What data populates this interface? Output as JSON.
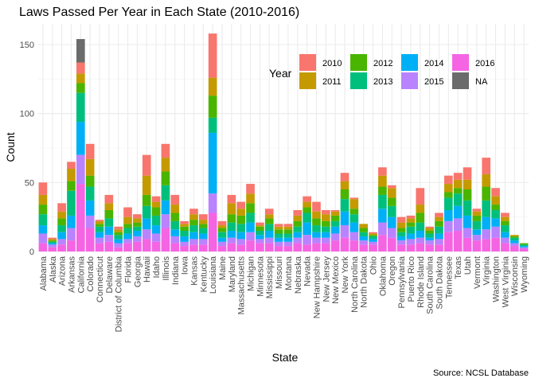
{
  "chart_data": {
    "type": "bar",
    "stacked": true,
    "title": "Laws Passed Per Year in Each State (2010-2016)",
    "xlabel": "State",
    "ylabel": "Count",
    "caption": "Source: NCSL Database",
    "ylim": [
      0,
      165
    ],
    "yticks": [
      0,
      50,
      100,
      150
    ],
    "grid": true,
    "legend": {
      "title": "Year",
      "position": "top-right"
    },
    "categories": [
      "Alabama",
      "Alaska",
      "Arizona",
      "Arkansas",
      "California",
      "Colorado",
      "Connecticut",
      "Delaware",
      "District of Columbia",
      "Florida",
      "Georgia",
      "Hawaii",
      "Idaho",
      "Illinois",
      "Indiana",
      "Iowa",
      "Kansas",
      "Kentucky",
      "Louisiana",
      "Maine",
      "Maryland",
      "Massachusetts",
      "Michigan",
      "Minnesota",
      "Mississippi",
      "Missouri",
      "Montana",
      "Nebraska",
      "Nevada",
      "New Hampshire",
      "New Jersey",
      "New Mexico",
      "New York",
      "North Carolina",
      "North Dakota",
      "Ohio",
      "Oklahoma",
      "Oregon",
      "Pennsylvania",
      "Puerto Rico",
      "Rhode Island",
      "South Carolina",
      "South Dakota",
      "Tennessee",
      "Texas",
      "Utah",
      "Vermont",
      "Virginia",
      "Washington",
      "West Virginia",
      "Wisconsin",
      "Wyoming"
    ],
    "series": [
      {
        "name": "2016",
        "color": "#F564E3",
        "values": [
          6,
          3,
          5,
          8,
          49,
          17,
          6,
          7,
          3,
          6,
          7,
          9,
          7,
          17,
          6,
          4,
          5,
          5,
          28,
          4,
          6,
          5,
          8,
          6,
          6,
          4,
          4,
          6,
          5,
          6,
          6,
          8,
          10,
          8,
          5,
          5,
          12,
          10,
          5,
          5,
          6,
          5,
          5,
          14,
          15,
          10,
          8,
          9,
          10,
          6,
          4,
          2
        ]
      },
      {
        "name": "2015",
        "color": "#B983FF",
        "values": [
          7,
          2,
          4,
          9,
          21,
          9,
          4,
          5,
          3,
          3,
          4,
          7,
          6,
          10,
          5,
          3,
          4,
          4,
          14,
          3,
          4,
          4,
          6,
          3,
          4,
          3,
          3,
          4,
          7,
          4,
          4,
          5,
          9,
          6,
          3,
          2,
          9,
          7,
          3,
          4,
          4,
          3,
          4,
          8,
          9,
          7,
          4,
          7,
          8,
          4,
          2,
          1
        ]
      },
      {
        "name": "2014",
        "color": "#00B0F6",
        "values": [
          6,
          1,
          5,
          9,
          24,
          11,
          4,
          6,
          3,
          4,
          4,
          8,
          6,
          10,
          5,
          4,
          5,
          4,
          44,
          3,
          5,
          5,
          7,
          3,
          5,
          3,
          3,
          4,
          9,
          4,
          4,
          5,
          10,
          7,
          3,
          2,
          10,
          8,
          3,
          4,
          5,
          2,
          4,
          8,
          9,
          9,
          4,
          9,
          6,
          4,
          2,
          1
        ]
      },
      {
        "name": "2013",
        "color": "#00BF7D",
        "values": [
          8,
          1,
          5,
          18,
          21,
          10,
          4,
          6,
          3,
          4,
          3,
          9,
          7,
          11,
          6,
          4,
          5,
          4,
          11,
          4,
          6,
          6,
          7,
          3,
          5,
          3,
          3,
          4,
          7,
          5,
          4,
          4,
          9,
          6,
          3,
          2,
          10,
          8,
          3,
          5,
          6,
          3,
          5,
          9,
          9,
          11,
          6,
          12,
          6,
          5,
          2,
          1
        ]
      },
      {
        "name": "2012",
        "color": "#49B500",
        "values": [
          7,
          1,
          5,
          7,
          7,
          8,
          2,
          6,
          2,
          3,
          3,
          8,
          6,
          10,
          6,
          3,
          4,
          3,
          16,
          3,
          6,
          6,
          7,
          3,
          4,
          3,
          3,
          4,
          4,
          5,
          4,
          4,
          7,
          4,
          3,
          1,
          6,
          6,
          3,
          3,
          7,
          2,
          4,
          4,
          4,
          8,
          4,
          10,
          4,
          3,
          1,
          1
        ]
      },
      {
        "name": "2011",
        "color": "#C49A00",
        "values": [
          7,
          1,
          5,
          9,
          7,
          12,
          2,
          5,
          2,
          5,
          3,
          14,
          4,
          10,
          6,
          2,
          4,
          3,
          13,
          2,
          8,
          5,
          7,
          1,
          3,
          2,
          2,
          4,
          4,
          5,
          5,
          3,
          6,
          7,
          3,
          1,
          8,
          7,
          4,
          3,
          6,
          2,
          3,
          6,
          6,
          7,
          3,
          9,
          6,
          3,
          1,
          0
        ]
      },
      {
        "name": "2010",
        "color": "#F8766D",
        "values": [
          9,
          1,
          6,
          5,
          8,
          11,
          1,
          6,
          2,
          7,
          3,
          15,
          4,
          10,
          7,
          2,
          4,
          4,
          32,
          3,
          6,
          5,
          7,
          2,
          4,
          2,
          2,
          4,
          4,
          7,
          3,
          1,
          6,
          1,
          0,
          1,
          6,
          2,
          4,
          2,
          12,
          1,
          3,
          6,
          5,
          9,
          2,
          12,
          6,
          3,
          0,
          0
        ]
      },
      {
        "name": "NA",
        "color": "#6B6B6B",
        "values": [
          0,
          0,
          0,
          0,
          17,
          0,
          0,
          0,
          0,
          0,
          0,
          0,
          0,
          0,
          0,
          0,
          0,
          0,
          0,
          0,
          0,
          0,
          0,
          0,
          0,
          0,
          0,
          0,
          0,
          0,
          0,
          0,
          0,
          0,
          0,
          0,
          0,
          0,
          0,
          0,
          0,
          0,
          0,
          0,
          0,
          0,
          0,
          0,
          0,
          0,
          0,
          0
        ]
      }
    ],
    "legend_order": [
      "2010",
      "2011",
      "2012",
      "2013",
      "2014",
      "2015",
      "2016",
      "NA"
    ]
  }
}
